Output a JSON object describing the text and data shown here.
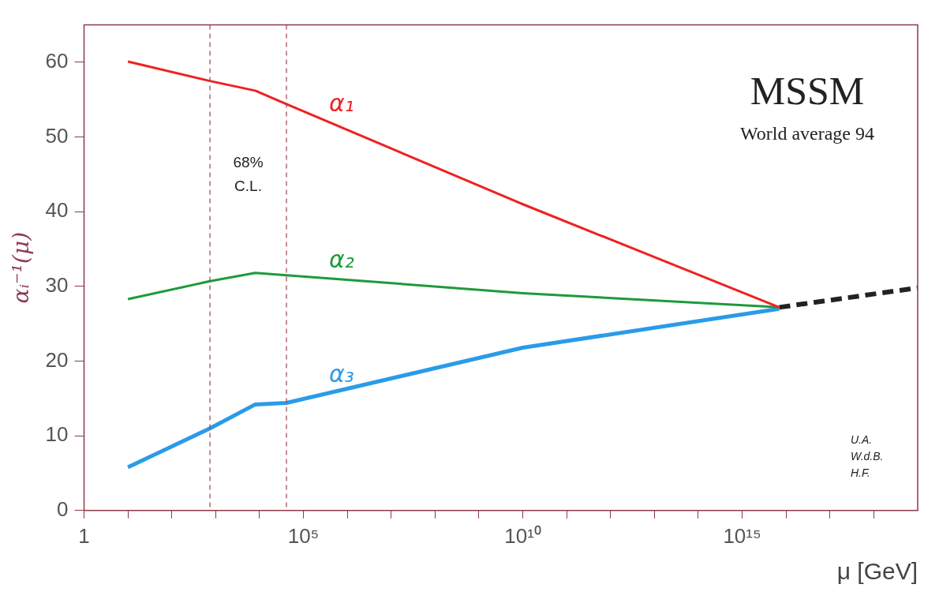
{
  "chart_data": {
    "type": "line",
    "xlabel": "μ [GeV]",
    "ylabel": "αᵢ⁻¹(μ)",
    "log": "x",
    "grid": false,
    "legend": false,
    "line_style": "solid",
    "marker": "none",
    "xlim": [
      1,
      1e+19
    ],
    "ylim": [
      0,
      65
    ],
    "xticks": [
      1,
      {
        "value": 10,
        "label": null
      },
      {
        "value": 100,
        "label": null
      },
      {
        "value": 1000,
        "label": null
      },
      {
        "value": 10000,
        "label": null
      },
      {
        "value": 100000,
        "label": "10⁵"
      },
      {
        "value": 1000000.0,
        "label": null
      },
      {
        "value": 10000000.0,
        "label": null
      },
      {
        "value": 100000000.0,
        "label": null
      },
      {
        "value": 1000000000.0,
        "label": null
      },
      {
        "value": 10000000000.0,
        "label": "10¹⁰"
      },
      {
        "value": 100000000000.0,
        "label": null
      },
      {
        "value": 1000000000000.0,
        "label": null
      },
      {
        "value": 10000000000000.0,
        "label": null
      },
      {
        "value": 100000000000000.0,
        "label": null
      },
      {
        "value": 1000000000000000.0,
        "label": "10¹⁵"
      },
      {
        "value": 1e+16,
        "label": null
      },
      {
        "value": 1e+17,
        "label": null
      },
      {
        "value": 1e+18,
        "label": null
      }
    ],
    "yticks": [
      0,
      10,
      20,
      30,
      40,
      50,
      60
    ],
    "series": [
      {
        "name": "α₁",
        "color": "#ee2222",
        "x": [
          10,
          740,
          8000,
          41000,
          10000000000.0,
          7000000000000000.0
        ],
        "values": [
          60.1,
          57.5,
          56.2,
          54.4,
          41,
          27.2
        ]
      },
      {
        "name": "α₂",
        "color": "#1e9a3c",
        "x": [
          10,
          740,
          8000,
          41000,
          10000000000.0,
          7000000000000000.0
        ],
        "values": [
          28.3,
          30.7,
          31.8,
          31.5,
          29.1,
          27.2
        ]
      },
      {
        "name": "α₃",
        "color": "#2a9be8",
        "x": [
          10,
          740,
          8000,
          41000,
          10000000000.0,
          7000000000000000.0
        ],
        "values": [
          5.8,
          11,
          14.2,
          14.4,
          21.8,
          27
        ]
      },
      {
        "color": "#222222",
        "line_style": "dashed",
        "x": [
          7000000000000000.0,
          1e+19
        ],
        "values": [
          27.2,
          29.8
        ]
      }
    ],
    "ref_lines": [
      {
        "axis": "x",
        "value": 740,
        "color": "#a0404a",
        "line_style": "dashed"
      },
      {
        "axis": "x",
        "value": 41000,
        "color": "#a0404a",
        "line_style": "dashed"
      }
    ],
    "annotations": [
      "68% C.L.",
      "MSSM",
      "World average 94",
      "U.A. W.d.B. H.F."
    ]
  }
}
